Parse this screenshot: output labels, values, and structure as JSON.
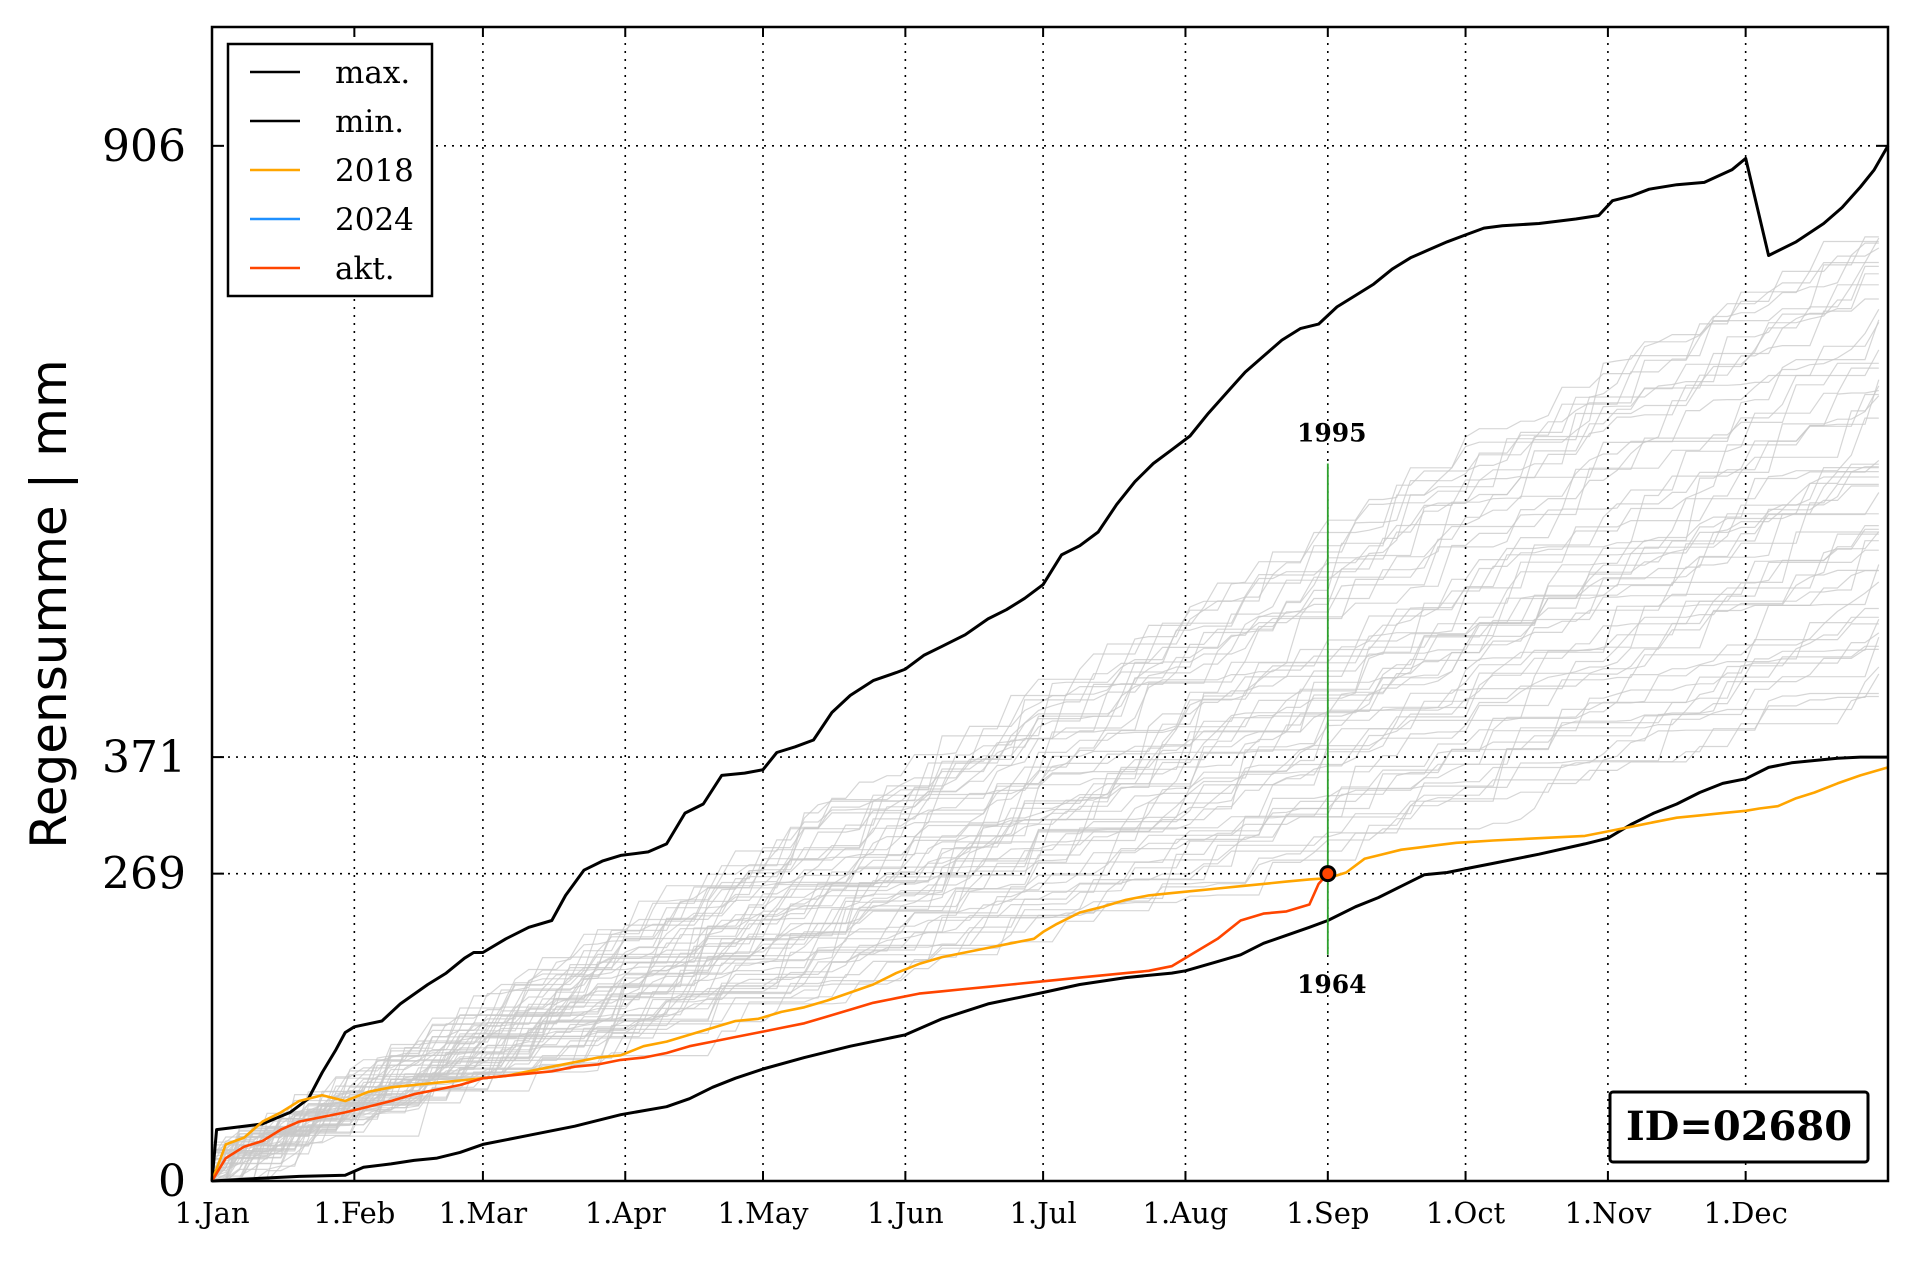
{
  "chart_data": {
    "type": "line",
    "title": "",
    "xlabel": "",
    "ylabel": "Regensumme | mm",
    "x_unit": "day of year",
    "xlim": [
      1,
      366
    ],
    "ylim": [
      0,
      1010
    ],
    "x_ticks": [
      {
        "label": "1.Jan",
        "day": 1
      },
      {
        "label": "1.Feb",
        "day": 32
      },
      {
        "label": "1.Mar",
        "day": 60
      },
      {
        "label": "1.Apr",
        "day": 91
      },
      {
        "label": "1.May",
        "day": 121
      },
      {
        "label": "1.Jun",
        "day": 152
      },
      {
        "label": "1.Jul",
        "day": 182
      },
      {
        "label": "1.Aug",
        "day": 213
      },
      {
        "label": "1.Sep",
        "day": 244
      },
      {
        "label": "1.Oct",
        "day": 274
      },
      {
        "label": "1.Nov",
        "day": 305
      },
      {
        "label": "1.Dec",
        "day": 335
      }
    ],
    "y_ticks": [
      0,
      269,
      371,
      906
    ],
    "grid": "dotted",
    "legend": {
      "placement": "top-left",
      "entries": [
        "max.",
        "min.",
        "2018",
        "2024",
        "akt."
      ]
    },
    "colors": {
      "max": "#000000",
      "min": "#000000",
      "y2018": "#ffa500",
      "y2024": "#1e90ff",
      "akt": "#ff4500",
      "marker_line": "#2ca02c",
      "background_years": "#c8c8c8"
    },
    "series": [
      {
        "name": "max.",
        "color": "#000000",
        "x": [
          1,
          2,
          8,
          12,
          18,
          22,
          25,
          28,
          30,
          32,
          38,
          42,
          48,
          52,
          56,
          58,
          60,
          65,
          70,
          75,
          78,
          82,
          86,
          90,
          96,
          100,
          104,
          108,
          112,
          117,
          121,
          124,
          128,
          132,
          136,
          140,
          145,
          150,
          152,
          156,
          160,
          165,
          170,
          174,
          178,
          182,
          186,
          190,
          194,
          198,
          202,
          206,
          210,
          214,
          218,
          222,
          226,
          230,
          234,
          238,
          242,
          246,
          250,
          254,
          258,
          262,
          266,
          270,
          274,
          278,
          282,
          290,
          298,
          303,
          306,
          310,
          314,
          320,
          326,
          332,
          335,
          340,
          346,
          352,
          356,
          360,
          363,
          366
        ],
        "y": [
          0,
          45,
          48,
          50,
          60,
          72,
          95,
          115,
          130,
          135,
          140,
          155,
          172,
          182,
          195,
          200,
          200,
          212,
          222,
          228,
          250,
          272,
          280,
          285,
          288,
          295,
          322,
          330,
          355,
          357,
          360,
          375,
          380,
          386,
          410,
          425,
          438,
          445,
          448,
          460,
          468,
          478,
          492,
          500,
          510,
          522,
          548,
          556,
          568,
          592,
          612,
          628,
          640,
          652,
          672,
          690,
          708,
          722,
          736,
          746,
          750,
          765,
          775,
          785,
          798,
          808,
          815,
          822,
          828,
          834,
          836,
          838,
          842,
          845,
          858,
          862,
          868,
          872,
          874,
          885,
          895,
          810,
          822,
          838,
          852,
          870,
          885,
          906
        ]
      },
      {
        "name": "min.",
        "color": "#000000",
        "x": [
          1,
          10,
          20,
          30,
          34,
          40,
          45,
          50,
          55,
          60,
          70,
          80,
          90,
          100,
          105,
          110,
          115,
          121,
          130,
          140,
          152,
          160,
          170,
          182,
          190,
          200,
          210,
          213,
          220,
          225,
          230,
          235,
          240,
          244,
          250,
          255,
          260,
          265,
          270,
          275,
          280,
          290,
          300,
          305,
          310,
          315,
          320,
          325,
          330,
          335,
          340,
          345,
          350,
          355,
          360,
          366
        ],
        "y": [
          0,
          2,
          4,
          5,
          12,
          15,
          18,
          20,
          25,
          32,
          40,
          48,
          58,
          65,
          72,
          82,
          90,
          98,
          108,
          118,
          128,
          142,
          155,
          165,
          172,
          178,
          182,
          184,
          192,
          198,
          208,
          215,
          222,
          228,
          240,
          248,
          258,
          268,
          270,
          274,
          278,
          286,
          295,
          300,
          312,
          322,
          330,
          340,
          348,
          352,
          362,
          366,
          368,
          370,
          371,
          371
        ]
      },
      {
        "name": "2018",
        "color": "#ffa500",
        "x": [
          1,
          4,
          8,
          12,
          16,
          20,
          25,
          30,
          35,
          40,
          45,
          50,
          55,
          60,
          65,
          70,
          75,
          80,
          85,
          90,
          95,
          100,
          105,
          110,
          115,
          120,
          125,
          130,
          135,
          140,
          145,
          150,
          155,
          160,
          165,
          170,
          175,
          180,
          182,
          185,
          190,
          195,
          200,
          205,
          210,
          215,
          220,
          225,
          230,
          235,
          240,
          244,
          248,
          252,
          256,
          260,
          264,
          268,
          272,
          276,
          280,
          290,
          300,
          305,
          310,
          315,
          320,
          325,
          330,
          335,
          338,
          342,
          346,
          350,
          355,
          360,
          366
        ],
        "y": [
          0,
          32,
          38,
          52,
          60,
          70,
          75,
          70,
          78,
          82,
          84,
          86,
          88,
          90,
          92,
          96,
          100,
          104,
          108,
          110,
          118,
          122,
          128,
          134,
          140,
          142,
          148,
          152,
          158,
          165,
          172,
          182,
          190,
          196,
          200,
          204,
          208,
          212,
          218,
          225,
          235,
          240,
          246,
          250,
          252,
          254,
          256,
          258,
          260,
          262,
          264,
          265,
          270,
          282,
          286,
          290,
          292,
          294,
          296,
          297,
          298,
          300,
          302,
          306,
          310,
          314,
          318,
          320,
          322,
          324,
          326,
          328,
          335,
          340,
          348,
          355,
          362
        ]
      },
      {
        "name": "akt.",
        "color": "#ff4500",
        "x": [
          1,
          4,
          8,
          12,
          16,
          20,
          25,
          30,
          35,
          40,
          45,
          50,
          55,
          60,
          65,
          70,
          75,
          80,
          85,
          90,
          95,
          100,
          105,
          110,
          115,
          120,
          125,
          130,
          135,
          140,
          145,
          150,
          155,
          160,
          165,
          170,
          175,
          180,
          185,
          190,
          195,
          200,
          205,
          210,
          215,
          220,
          225,
          230,
          235,
          240,
          242,
          244
        ],
        "y": [
          0,
          20,
          30,
          35,
          45,
          52,
          56,
          60,
          65,
          70,
          76,
          80,
          84,
          90,
          92,
          94,
          96,
          100,
          102,
          106,
          108,
          112,
          118,
          122,
          126,
          130,
          134,
          138,
          144,
          150,
          156,
          160,
          164,
          166,
          168,
          170,
          172,
          174,
          176,
          178,
          180,
          182,
          184,
          188,
          200,
          212,
          228,
          234,
          236,
          242,
          260,
          269
        ]
      }
    ],
    "current_point": {
      "x": 244,
      "y": 269
    },
    "annotations": {
      "max_year": {
        "label": "1995",
        "x": 244,
        "y": 628
      },
      "min_year": {
        "label": "1964",
        "x": 244,
        "y": 198
      }
    },
    "id_box": "ID=02680"
  }
}
